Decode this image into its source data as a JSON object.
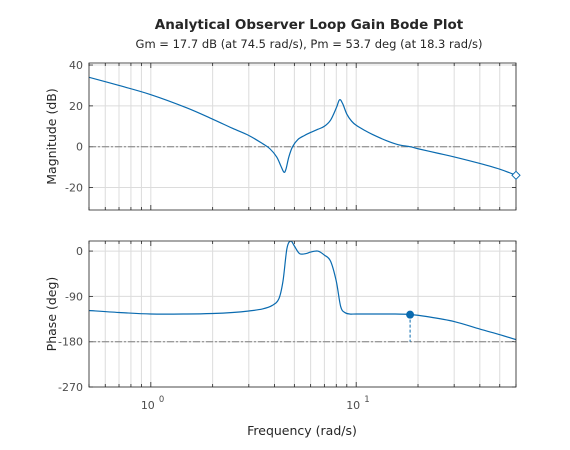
{
  "chart_data": {
    "type": "line",
    "title": "Analytical Observer Loop Gain Bode Plot",
    "subtitle": "Gm = 17.7 dB (at 74.5 rad/s),  Pm = 53.7 deg (at 18.3 rad/s)",
    "xlabel": "Frequency (rad/s)",
    "xscale": "log",
    "xlim": [
      0.5,
      60
    ],
    "xticks": [
      {
        "value": 1,
        "base": "10",
        "exp": "0"
      },
      {
        "value": 10,
        "base": "10",
        "exp": "1"
      }
    ],
    "grid": true,
    "line_color": "#0a6bb0",
    "panels": [
      {
        "ylabel": "Magnitude (dB)",
        "ylim": [
          -31,
          41
        ],
        "yticks": [
          "-20",
          "0",
          "20",
          "40"
        ],
        "ytick_values": [
          -20,
          0,
          20,
          40
        ],
        "reference_line": 0,
        "x": [
          0.5,
          0.7,
          1.0,
          1.5,
          2.0,
          2.5,
          3.0,
          3.5,
          3.8,
          4.1,
          4.3,
          4.45,
          4.55,
          4.7,
          4.9,
          5.2,
          5.6,
          6.0,
          6.5,
          7.0,
          7.5,
          8.0,
          8.3,
          8.6,
          9.0,
          9.5,
          10.0,
          11.0,
          12.0,
          14.0,
          16.0,
          18.3,
          20.0,
          25.0,
          30.0,
          40.0,
          50.0,
          60.0
        ],
        "values": [
          34,
          30,
          25.5,
          19,
          13.5,
          9,
          5.5,
          1.5,
          -1,
          -5,
          -9.5,
          -12.5,
          -11,
          -5,
          0,
          3.5,
          5.5,
          7,
          8.5,
          10,
          13,
          19,
          23,
          21,
          16,
          12.5,
          10.5,
          8,
          6,
          3,
          1,
          0,
          -1,
          -3.2,
          -5,
          -8.2,
          -11,
          -14
        ],
        "marker": {
          "x": 60,
          "y": -14,
          "style": "open-diamond"
        }
      },
      {
        "ylabel": "Phase (deg)",
        "ylim": [
          -270,
          20
        ],
        "yticks": [
          "-270",
          "-180",
          "-90",
          "0"
        ],
        "ytick_values": [
          -270,
          -180,
          -90,
          0
        ],
        "reference_line": -180,
        "x": [
          0.5,
          0.7,
          1.0,
          1.5,
          2.0,
          2.5,
          3.0,
          3.5,
          3.9,
          4.2,
          4.4,
          4.6,
          4.8,
          5.0,
          5.3,
          5.7,
          6.0,
          6.5,
          7.0,
          7.5,
          8.0,
          8.4,
          8.8,
          9.3,
          10.0,
          12.0,
          15.0,
          18.3,
          22.0,
          30.0,
          40.0,
          50.0,
          60.0
        ],
        "values": [
          -118,
          -122,
          -125,
          -125,
          -124,
          -122,
          -119,
          -115,
          -108,
          -95,
          -60,
          5,
          20,
          10,
          -5,
          -5,
          -2,
          0,
          -8,
          -20,
          -60,
          -110,
          -122,
          -125,
          -125,
          -125,
          -125,
          -126,
          -130,
          -140,
          -155,
          -166,
          -176
        ],
        "marker": {
          "x": 18.3,
          "y": -126.3,
          "style": "filled-circle"
        }
      }
    ]
  }
}
